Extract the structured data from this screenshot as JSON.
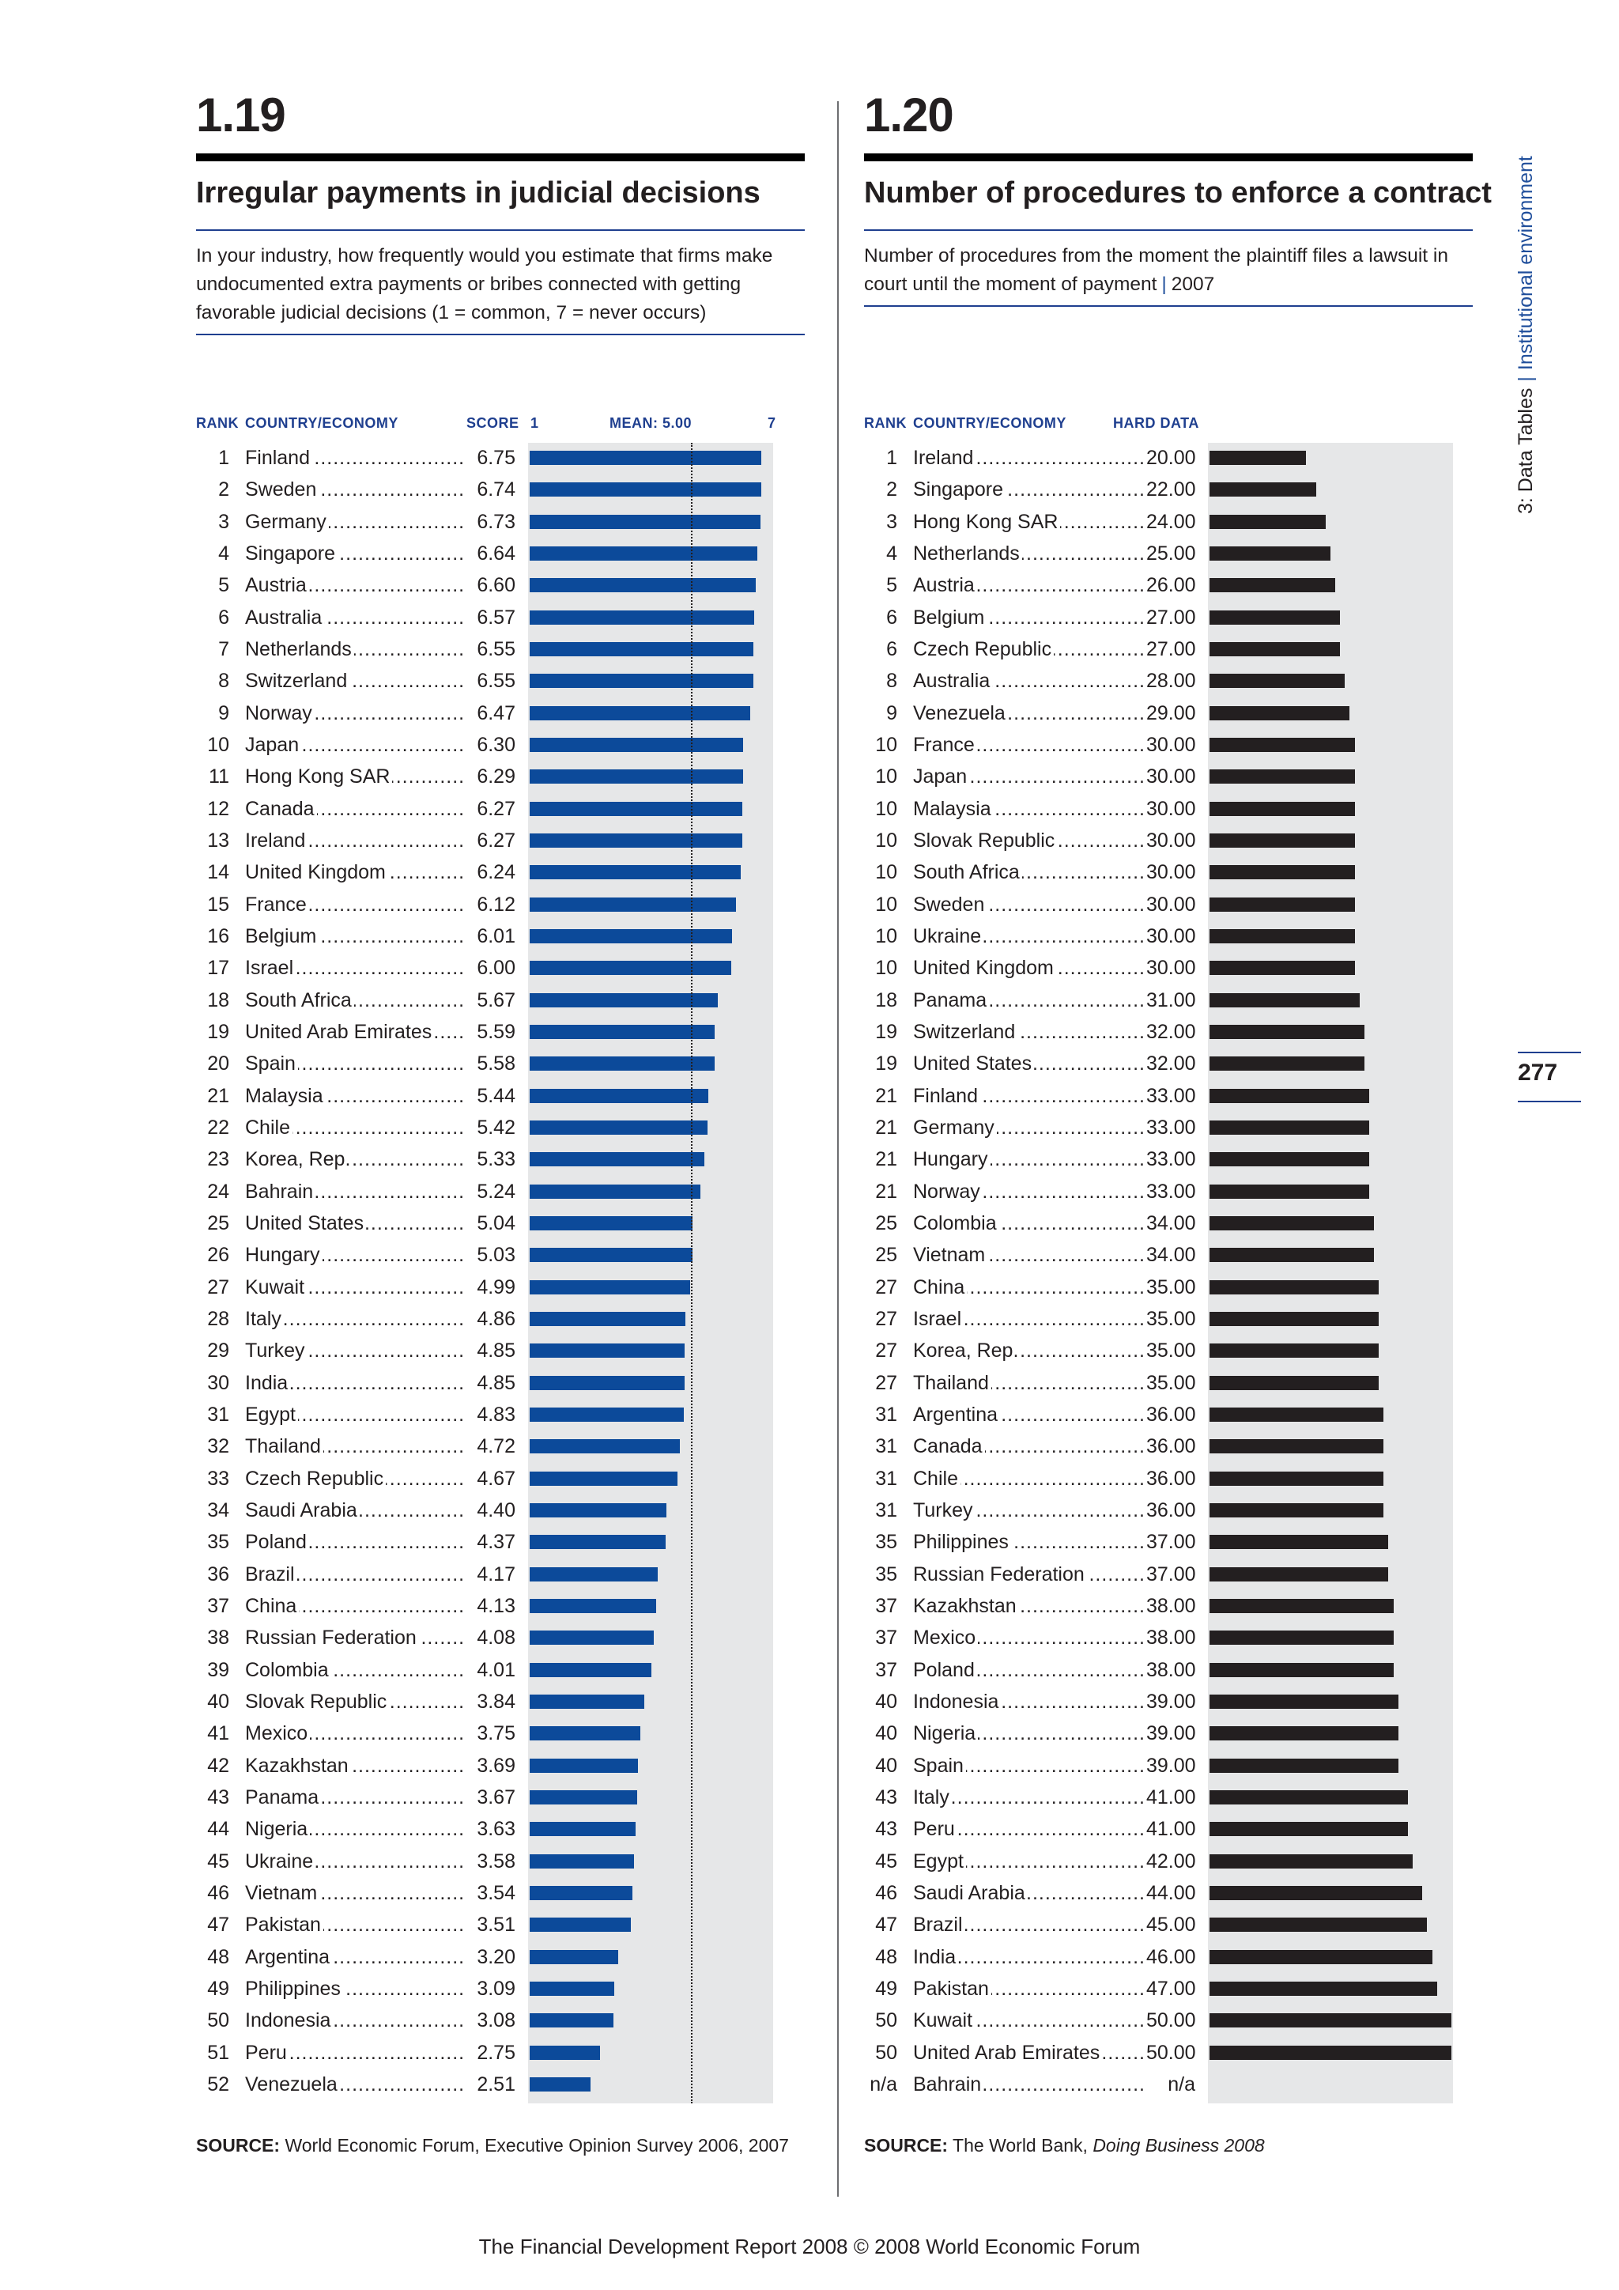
{
  "left": {
    "number": "1.19",
    "title": "Irregular payments in judicial decisions",
    "description": "In your industry, how frequently would you estimate that firms make undocumented extra payments or bribes connected with getting favorable judicial decisions (1 = common, 7 = never occurs)",
    "headers": {
      "rank": "RANK",
      "country": "COUNTRY/ECONOMY",
      "score": "SCORE",
      "scale_min": "1",
      "mean": "MEAN: 5.00",
      "scale_max": "7"
    },
    "source_label": "SOURCE:",
    "source_text": "World Economic Forum, Executive Opinion Survey 2006, 2007",
    "rows": [
      {
        "rank": "1",
        "country": "Finland",
        "value": "6.75"
      },
      {
        "rank": "2",
        "country": "Sweden",
        "value": "6.74"
      },
      {
        "rank": "3",
        "country": "Germany",
        "value": "6.73"
      },
      {
        "rank": "4",
        "country": "Singapore",
        "value": "6.64"
      },
      {
        "rank": "5",
        "country": "Austria",
        "value": "6.60"
      },
      {
        "rank": "6",
        "country": "Australia",
        "value": "6.57"
      },
      {
        "rank": "7",
        "country": "Netherlands",
        "value": "6.55"
      },
      {
        "rank": "8",
        "country": "Switzerland",
        "value": "6.55"
      },
      {
        "rank": "9",
        "country": "Norway",
        "value": "6.47"
      },
      {
        "rank": "10",
        "country": "Japan",
        "value": "6.30"
      },
      {
        "rank": "11",
        "country": "Hong Kong SAR",
        "value": "6.29"
      },
      {
        "rank": "12",
        "country": "Canada",
        "value": "6.27"
      },
      {
        "rank": "13",
        "country": "Ireland",
        "value": "6.27"
      },
      {
        "rank": "14",
        "country": "United Kingdom",
        "value": "6.24"
      },
      {
        "rank": "15",
        "country": "France",
        "value": "6.12"
      },
      {
        "rank": "16",
        "country": "Belgium",
        "value": "6.01"
      },
      {
        "rank": "17",
        "country": "Israel",
        "value": "6.00"
      },
      {
        "rank": "18",
        "country": "South Africa",
        "value": "5.67"
      },
      {
        "rank": "19",
        "country": "United Arab Emirates",
        "value": "5.59"
      },
      {
        "rank": "20",
        "country": "Spain",
        "value": "5.58"
      },
      {
        "rank": "21",
        "country": "Malaysia",
        "value": "5.44"
      },
      {
        "rank": "22",
        "country": "Chile",
        "value": "5.42"
      },
      {
        "rank": "23",
        "country": "Korea, Rep.",
        "value": "5.33"
      },
      {
        "rank": "24",
        "country": "Bahrain",
        "value": "5.24"
      },
      {
        "rank": "25",
        "country": "United States",
        "value": "5.04"
      },
      {
        "rank": "26",
        "country": "Hungary",
        "value": "5.03"
      },
      {
        "rank": "27",
        "country": "Kuwait",
        "value": "4.99"
      },
      {
        "rank": "28",
        "country": "Italy",
        "value": "4.86"
      },
      {
        "rank": "29",
        "country": "Turkey",
        "value": "4.85"
      },
      {
        "rank": "30",
        "country": "India",
        "value": "4.85"
      },
      {
        "rank": "31",
        "country": "Egypt",
        "value": "4.83"
      },
      {
        "rank": "32",
        "country": "Thailand",
        "value": "4.72"
      },
      {
        "rank": "33",
        "country": "Czech Republic",
        "value": "4.67"
      },
      {
        "rank": "34",
        "country": "Saudi Arabia",
        "value": "4.40"
      },
      {
        "rank": "35",
        "country": "Poland",
        "value": "4.37"
      },
      {
        "rank": "36",
        "country": "Brazil",
        "value": "4.17"
      },
      {
        "rank": "37",
        "country": "China",
        "value": "4.13"
      },
      {
        "rank": "38",
        "country": "Russian Federation",
        "value": "4.08"
      },
      {
        "rank": "39",
        "country": "Colombia",
        "value": "4.01"
      },
      {
        "rank": "40",
        "country": "Slovak Republic",
        "value": "3.84"
      },
      {
        "rank": "41",
        "country": "Mexico",
        "value": "3.75"
      },
      {
        "rank": "42",
        "country": "Kazakhstan",
        "value": "3.69"
      },
      {
        "rank": "43",
        "country": "Panama",
        "value": "3.67"
      },
      {
        "rank": "44",
        "country": "Nigeria",
        "value": "3.63"
      },
      {
        "rank": "45",
        "country": "Ukraine",
        "value": "3.58"
      },
      {
        "rank": "46",
        "country": "Vietnam",
        "value": "3.54"
      },
      {
        "rank": "47",
        "country": "Pakistan",
        "value": "3.51"
      },
      {
        "rank": "48",
        "country": "Argentina",
        "value": "3.20"
      },
      {
        "rank": "49",
        "country": "Philippines",
        "value": "3.09"
      },
      {
        "rank": "50",
        "country": "Indonesia",
        "value": "3.08"
      },
      {
        "rank": "51",
        "country": "Peru",
        "value": "2.75"
      },
      {
        "rank": "52",
        "country": "Venezuela",
        "value": "2.51"
      }
    ]
  },
  "right": {
    "number": "1.20",
    "title": "Number of procedures to enforce a contract",
    "description": "Number of procedures from the moment the plaintiff files a lawsuit in court until the moment of payment",
    "year": "2007",
    "headers": {
      "rank": "RANK",
      "country": "COUNTRY/ECONOMY",
      "value": "HARD DATA"
    },
    "source_label": "SOURCE:",
    "source_text": "The World Bank, ",
    "source_italic": "Doing Business 2008",
    "rows": [
      {
        "rank": "1",
        "country": "Ireland",
        "value": "20.00"
      },
      {
        "rank": "2",
        "country": "Singapore",
        "value": "22.00"
      },
      {
        "rank": "3",
        "country": "Hong Kong SAR",
        "value": "24.00"
      },
      {
        "rank": "4",
        "country": "Netherlands",
        "value": "25.00"
      },
      {
        "rank": "5",
        "country": "Austria",
        "value": "26.00"
      },
      {
        "rank": "6",
        "country": "Belgium",
        "value": "27.00"
      },
      {
        "rank": "6",
        "country": "Czech Republic",
        "value": "27.00"
      },
      {
        "rank": "8",
        "country": "Australia",
        "value": "28.00"
      },
      {
        "rank": "9",
        "country": "Venezuela",
        "value": "29.00"
      },
      {
        "rank": "10",
        "country": "France",
        "value": "30.00"
      },
      {
        "rank": "10",
        "country": "Japan",
        "value": "30.00"
      },
      {
        "rank": "10",
        "country": "Malaysia",
        "value": "30.00"
      },
      {
        "rank": "10",
        "country": "Slovak Republic",
        "value": "30.00"
      },
      {
        "rank": "10",
        "country": "South Africa",
        "value": "30.00"
      },
      {
        "rank": "10",
        "country": "Sweden",
        "value": "30.00"
      },
      {
        "rank": "10",
        "country": "Ukraine",
        "value": "30.00"
      },
      {
        "rank": "10",
        "country": "United Kingdom",
        "value": "30.00"
      },
      {
        "rank": "18",
        "country": "Panama",
        "value": "31.00"
      },
      {
        "rank": "19",
        "country": "Switzerland",
        "value": "32.00"
      },
      {
        "rank": "19",
        "country": "United States",
        "value": "32.00"
      },
      {
        "rank": "21",
        "country": "Finland",
        "value": "33.00"
      },
      {
        "rank": "21",
        "country": "Germany",
        "value": "33.00"
      },
      {
        "rank": "21",
        "country": "Hungary",
        "value": "33.00"
      },
      {
        "rank": "21",
        "country": "Norway",
        "value": "33.00"
      },
      {
        "rank": "25",
        "country": "Colombia",
        "value": "34.00"
      },
      {
        "rank": "25",
        "country": "Vietnam",
        "value": "34.00"
      },
      {
        "rank": "27",
        "country": "China",
        "value": "35.00"
      },
      {
        "rank": "27",
        "country": "Israel",
        "value": "35.00"
      },
      {
        "rank": "27",
        "country": "Korea, Rep.",
        "value": "35.00"
      },
      {
        "rank": "27",
        "country": "Thailand",
        "value": "35.00"
      },
      {
        "rank": "31",
        "country": "Argentina",
        "value": "36.00"
      },
      {
        "rank": "31",
        "country": "Canada",
        "value": "36.00"
      },
      {
        "rank": "31",
        "country": "Chile",
        "value": "36.00"
      },
      {
        "rank": "31",
        "country": "Turkey",
        "value": "36.00"
      },
      {
        "rank": "35",
        "country": "Philippines",
        "value": "37.00"
      },
      {
        "rank": "35",
        "country": "Russian Federation",
        "value": "37.00"
      },
      {
        "rank": "37",
        "country": "Kazakhstan",
        "value": "38.00"
      },
      {
        "rank": "37",
        "country": "Mexico",
        "value": "38.00"
      },
      {
        "rank": "37",
        "country": "Poland",
        "value": "38.00"
      },
      {
        "rank": "40",
        "country": "Indonesia",
        "value": "39.00"
      },
      {
        "rank": "40",
        "country": "Nigeria",
        "value": "39.00"
      },
      {
        "rank": "40",
        "country": "Spain",
        "value": "39.00"
      },
      {
        "rank": "43",
        "country": "Italy",
        "value": "41.00"
      },
      {
        "rank": "43",
        "country": "Peru",
        "value": "41.00"
      },
      {
        "rank": "45",
        "country": "Egypt",
        "value": "42.00"
      },
      {
        "rank": "46",
        "country": "Saudi Arabia",
        "value": "44.00"
      },
      {
        "rank": "47",
        "country": "Brazil",
        "value": "45.00"
      },
      {
        "rank": "48",
        "country": "India",
        "value": "46.00"
      },
      {
        "rank": "49",
        "country": "Pakistan",
        "value": "47.00"
      },
      {
        "rank": "50",
        "country": "Kuwait",
        "value": "50.00"
      },
      {
        "rank": "50",
        "country": "United Arab Emirates",
        "value": "50.00"
      },
      {
        "rank": "n/a",
        "country": "Bahrain",
        "value": "n/a"
      }
    ]
  },
  "side_tab": {
    "part": "3: Data Tables",
    "section": "Institutional environment"
  },
  "page_number": "277",
  "footer": "The Financial Development Report 2008 © 2008 World Economic Forum",
  "colors": {
    "accent_blue": "#1f3f8f",
    "bar_blue": "#0c4a9a",
    "bar_black": "#231f20",
    "chart_bg": "#e6e7e8"
  },
  "chart_data": [
    {
      "type": "bar",
      "orientation": "horizontal",
      "xlim": [
        1,
        7
      ],
      "mean": 5.0,
      "series_color": "#0c4a9a",
      "categories": [
        "Finland",
        "Sweden",
        "Germany",
        "Singapore",
        "Austria",
        "Australia",
        "Netherlands",
        "Switzerland",
        "Norway",
        "Japan",
        "Hong Kong SAR",
        "Canada",
        "Ireland",
        "United Kingdom",
        "France",
        "Belgium",
        "Israel",
        "South Africa",
        "United Arab Emirates",
        "Spain",
        "Malaysia",
        "Chile",
        "Korea, Rep.",
        "Bahrain",
        "United States",
        "Hungary",
        "Kuwait",
        "Italy",
        "Turkey",
        "India",
        "Egypt",
        "Thailand",
        "Czech Republic",
        "Saudi Arabia",
        "Poland",
        "Brazil",
        "China",
        "Russian Federation",
        "Colombia",
        "Slovak Republic",
        "Mexico",
        "Kazakhstan",
        "Panama",
        "Nigeria",
        "Ukraine",
        "Vietnam",
        "Pakistan",
        "Argentina",
        "Philippines",
        "Indonesia",
        "Peru",
        "Venezuela"
      ],
      "values": [
        6.75,
        6.74,
        6.73,
        6.64,
        6.6,
        6.57,
        6.55,
        6.55,
        6.47,
        6.3,
        6.29,
        6.27,
        6.27,
        6.24,
        6.12,
        6.01,
        6.0,
        5.67,
        5.59,
        5.58,
        5.44,
        5.42,
        5.33,
        5.24,
        5.04,
        5.03,
        4.99,
        4.86,
        4.85,
        4.85,
        4.83,
        4.72,
        4.67,
        4.4,
        4.37,
        4.17,
        4.13,
        4.08,
        4.01,
        3.84,
        3.75,
        3.69,
        3.67,
        3.63,
        3.58,
        3.54,
        3.51,
        3.2,
        3.09,
        3.08,
        2.75,
        2.51
      ]
    },
    {
      "type": "bar",
      "orientation": "horizontal",
      "xlim": [
        0,
        50
      ],
      "series_color": "#231f20",
      "categories": [
        "Ireland",
        "Singapore",
        "Hong Kong SAR",
        "Netherlands",
        "Austria",
        "Belgium",
        "Czech Republic",
        "Australia",
        "Venezuela",
        "France",
        "Japan",
        "Malaysia",
        "Slovak Republic",
        "South Africa",
        "Sweden",
        "Ukraine",
        "United Kingdom",
        "Panama",
        "Switzerland",
        "United States",
        "Finland",
        "Germany",
        "Hungary",
        "Norway",
        "Colombia",
        "Vietnam",
        "China",
        "Israel",
        "Korea, Rep.",
        "Thailand",
        "Argentina",
        "Canada",
        "Chile",
        "Turkey",
        "Philippines",
        "Russian Federation",
        "Kazakhstan",
        "Mexico",
        "Poland",
        "Indonesia",
        "Nigeria",
        "Spain",
        "Italy",
        "Peru",
        "Egypt",
        "Saudi Arabia",
        "Brazil",
        "India",
        "Pakistan",
        "Kuwait",
        "United Arab Emirates",
        "Bahrain"
      ],
      "values": [
        20,
        22,
        24,
        25,
        26,
        27,
        27,
        28,
        29,
        30,
        30,
        30,
        30,
        30,
        30,
        30,
        30,
        31,
        32,
        32,
        33,
        33,
        33,
        33,
        34,
        34,
        35,
        35,
        35,
        35,
        36,
        36,
        36,
        36,
        37,
        37,
        38,
        38,
        38,
        39,
        39,
        39,
        41,
        41,
        42,
        44,
        45,
        46,
        47,
        50,
        50,
        null
      ]
    }
  ]
}
